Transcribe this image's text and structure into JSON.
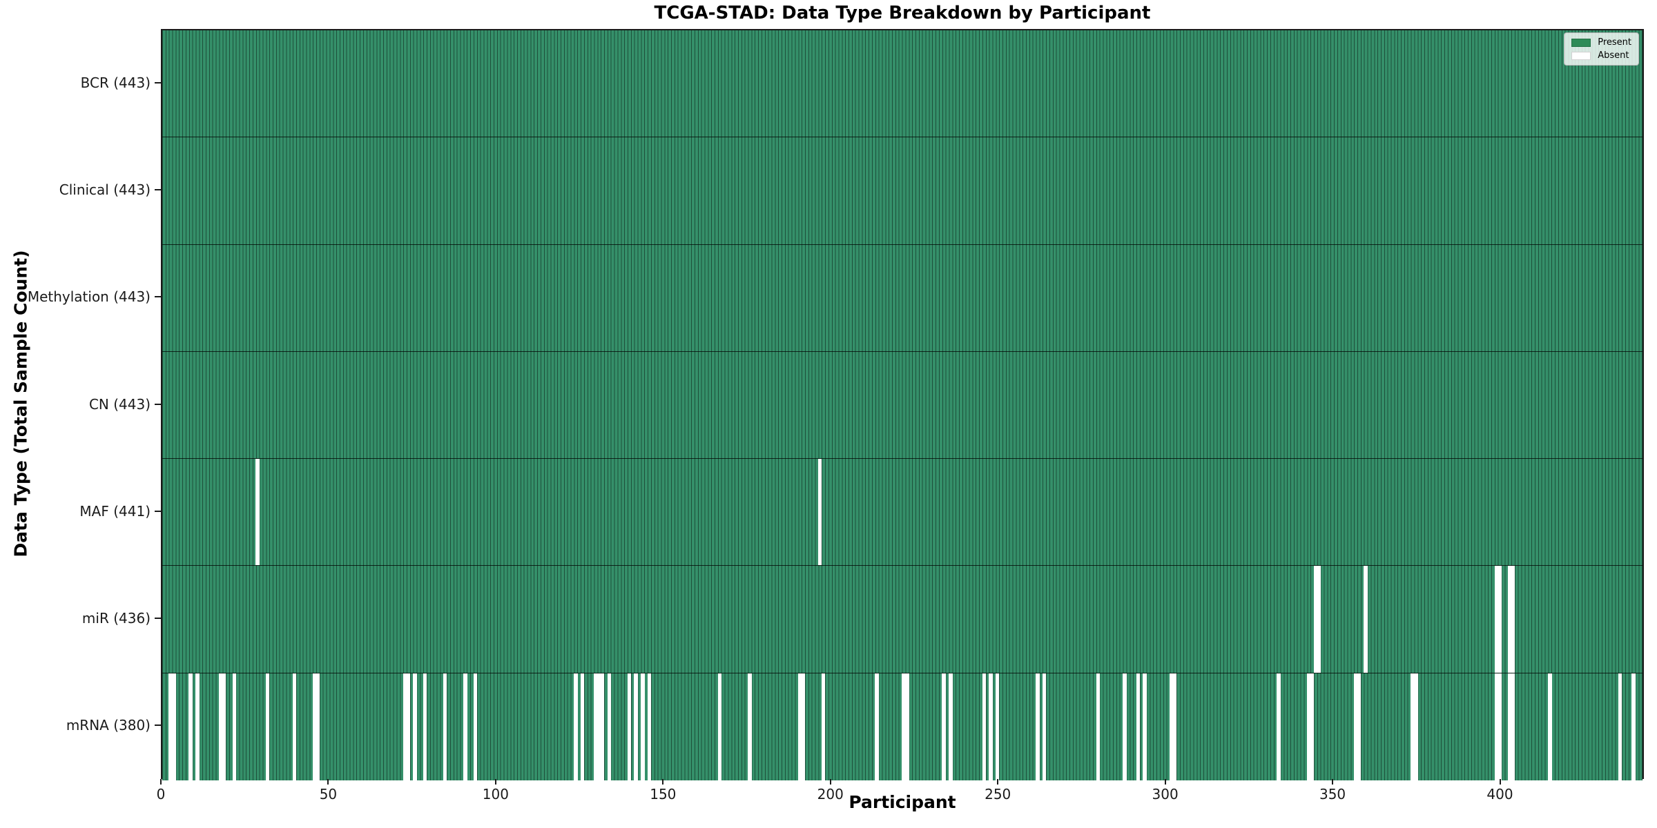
{
  "chart_data": {
    "type": "heatmap",
    "title": "TCGA-STAD: Data Type Breakdown by Participant",
    "xlabel": "Participant",
    "ylabel": "Data Type (Total Sample Count)",
    "x_ticks": [
      0,
      50,
      100,
      150,
      200,
      250,
      300,
      350,
      400
    ],
    "x_range": [
      0,
      443
    ],
    "n_participants": 443,
    "grid": false,
    "legend_position": "upper right",
    "legend": [
      {
        "label": "Present",
        "color": "#2e8b57"
      },
      {
        "label": "Absent",
        "color": "#ffffff"
      }
    ],
    "colors": {
      "present": "#35906a",
      "absent": "#ffffff",
      "cell_edge": "rgba(0,0,0,0.45)",
      "spine": "#1a1a1a"
    },
    "rows": [
      {
        "name": "BCR",
        "label": "BCR (443)",
        "total": 443,
        "absent": []
      },
      {
        "name": "Clinical",
        "label": "Clinical (443)",
        "total": 443,
        "absent": []
      },
      {
        "name": "Methylation",
        "label": "Methylation (443)",
        "total": 443,
        "absent": []
      },
      {
        "name": "CN",
        "label": "CN (443)",
        "total": 443,
        "absent": []
      },
      {
        "name": "MAF",
        "label": "MAF (441)",
        "total": 441,
        "absent": [
          28,
          196
        ]
      },
      {
        "name": "miR",
        "label": "miR (436)",
        "total": 436,
        "absent": [
          344,
          345,
          359,
          398,
          399,
          402,
          403
        ]
      },
      {
        "name": "mRNA",
        "label": "mRNA (380)",
        "total": 380,
        "absent": [
          2,
          3,
          8,
          10,
          17,
          18,
          21,
          31,
          39,
          45,
          46,
          72,
          73,
          75,
          78,
          84,
          90,
          93,
          123,
          125,
          129,
          130,
          131,
          133,
          139,
          141,
          143,
          145,
          166,
          175,
          190,
          191,
          197,
          213,
          221,
          222,
          233,
          235,
          245,
          247,
          249,
          261,
          263,
          279,
          287,
          291,
          293,
          301,
          302,
          333,
          342,
          343,
          356,
          357,
          373,
          374,
          398,
          399,
          402,
          403,
          414,
          435,
          439
        ]
      }
    ]
  }
}
